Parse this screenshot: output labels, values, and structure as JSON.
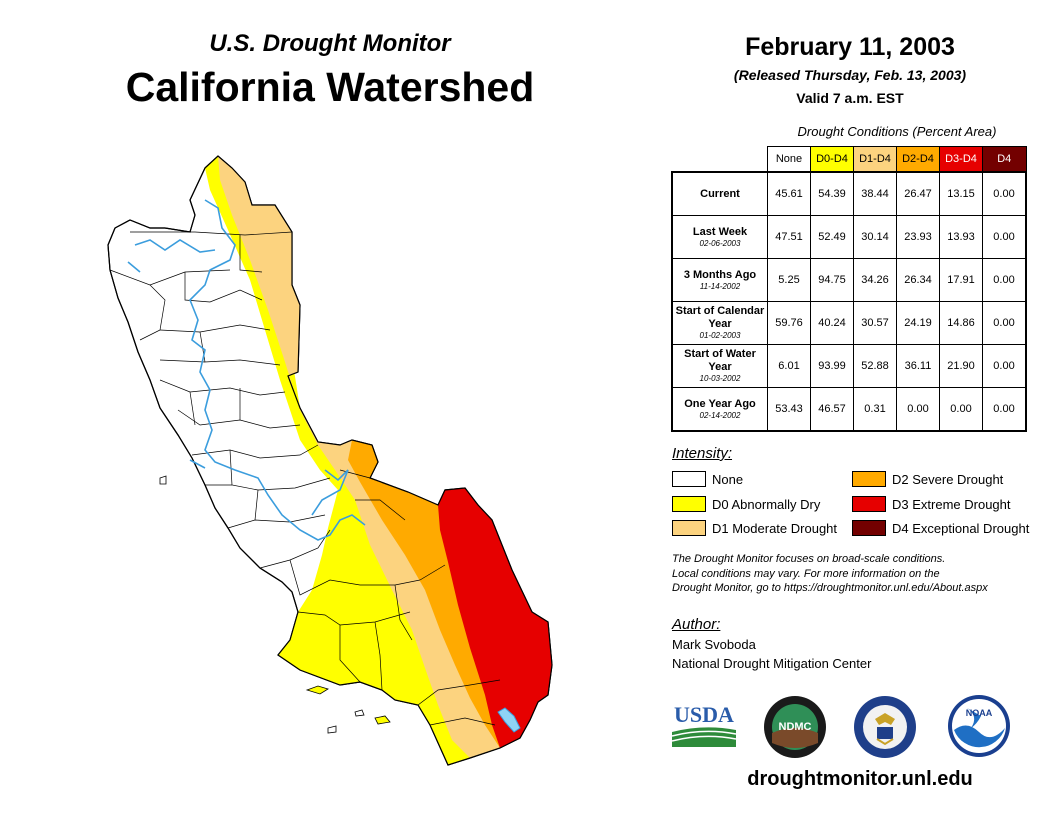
{
  "header": {
    "subtitle": "U.S. Drought Monitor",
    "title": "California Watershed",
    "date": "February 11, 2003",
    "released": "(Released Thursday, Feb. 13, 2003)",
    "valid": "Valid 7 a.m. EST"
  },
  "colors": {
    "none": "#ffffff",
    "d0": "#ffff00",
    "d1": "#fcd37f",
    "d2": "#ffaa00",
    "d3": "#e60000",
    "d4": "#730000",
    "rivers": "#3b9ddd",
    "lake": "#8fd3f5"
  },
  "conditions": {
    "caption": "Drought Conditions (Percent Area)",
    "columns": [
      "None",
      "D0-D4",
      "D1-D4",
      "D2-D4",
      "D3-D4",
      "D4"
    ],
    "rows": [
      {
        "label": "Current",
        "sub": "",
        "values": [
          "45.61",
          "54.39",
          "38.44",
          "26.47",
          "13.15",
          "0.00"
        ]
      },
      {
        "label": "Last Week",
        "sub": "02-06-2003",
        "values": [
          "47.51",
          "52.49",
          "30.14",
          "23.93",
          "13.93",
          "0.00"
        ]
      },
      {
        "label": "3 Months Ago",
        "sub": "11-14-2002",
        "values": [
          "5.25",
          "94.75",
          "34.26",
          "26.34",
          "17.91",
          "0.00"
        ]
      },
      {
        "label": "Start of Calendar Year",
        "sub": "01-02-2003",
        "values": [
          "59.76",
          "40.24",
          "30.57",
          "24.19",
          "14.86",
          "0.00"
        ]
      },
      {
        "label": "Start of Water Year",
        "sub": "10-03-2002",
        "values": [
          "6.01",
          "93.99",
          "52.88",
          "36.11",
          "21.90",
          "0.00"
        ]
      },
      {
        "label": "One Year Ago",
        "sub": "02-14-2002",
        "values": [
          "53.43",
          "46.57",
          "0.31",
          "0.00",
          "0.00",
          "0.00"
        ]
      }
    ]
  },
  "legend": {
    "title": "Intensity:",
    "items": [
      {
        "label": "None",
        "color": "#ffffff"
      },
      {
        "label": "D0 Abnormally Dry",
        "color": "#ffff00"
      },
      {
        "label": "D1 Moderate Drought",
        "color": "#fcd37f"
      },
      {
        "label": "D2 Severe Drought",
        "color": "#ffaa00"
      },
      {
        "label": "D3 Extreme Drought",
        "color": "#e60000"
      },
      {
        "label": "D4 Exceptional Drought",
        "color": "#730000"
      }
    ]
  },
  "note": {
    "line1": "The Drought Monitor focuses on broad-scale conditions.",
    "line2": "Local conditions may vary. For more information on the",
    "line3": "Drought Monitor, go to https://droughtmonitor.unl.edu/About.aspx"
  },
  "author": {
    "title": "Author:",
    "name": "Mark Svoboda",
    "org": "National Drought Mitigation Center"
  },
  "logos": {
    "usda": "USDA",
    "ndmc": "NDMC",
    "noaa": "NOAA"
  },
  "footer": {
    "url": "droughtmonitor.unl.edu"
  }
}
